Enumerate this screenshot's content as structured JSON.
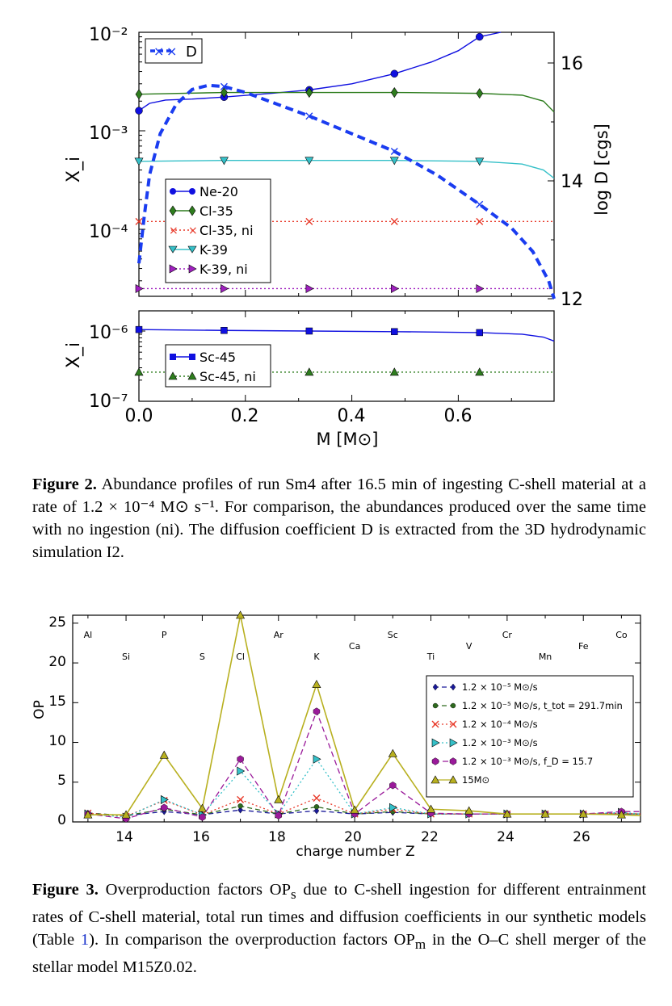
{
  "figure2": {
    "caption_label": "Figure 2.",
    "caption_text": "Abundance profiles of run Sm4 after 16.5 min of ingesting C-shell material at a rate of 1.2 × 10⁻⁴ M⊙ s⁻¹. For comparison, the abundances produced over the same time with no ingestion (ni). The diffusion coefficient D is extracted from the 3D hydrodynamic simulation I2.",
    "top_ylabel": "X_i",
    "right_ylabel": "log D [cgs]",
    "bottom_ylabel": "X_i",
    "xlabel": "M [M⊙]",
    "top_yticks": [
      "10⁻²",
      "10⁻³",
      "10⁻⁴"
    ],
    "right_yticks": [
      "16",
      "14",
      "12"
    ],
    "bottom_yticks": [
      "10⁻⁶",
      "10⁻⁷"
    ],
    "xticks": [
      "0.0",
      "0.2",
      "0.4",
      "0.6"
    ],
    "legend_D": "D",
    "legend_top": [
      "Ne-20",
      "Cl-35",
      "Cl-35, ni",
      "K-39",
      "K-39, ni"
    ],
    "legend_bottom": [
      "Sc-45",
      "Sc-45, ni"
    ],
    "colors": {
      "ne20": "#1010e0",
      "cl35": "#2e7d1e",
      "cl35ni": "#e83a2a",
      "k39": "#35c0c8",
      "k39ni": "#a020c0",
      "sc45": "#1010e0",
      "sc45ni": "#2e7d1e",
      "D": "#1a3cf0"
    }
  },
  "figure3": {
    "caption_label": "Figure 3.",
    "caption_text_1": "Overproduction factors OP",
    "caption_sub_s": "s",
    "caption_text_2": " due to C-shell ingestion for different entrainment rates of C-shell material, total run times and diffusion coefficients in our synthetic models (Table ",
    "caption_ref": "1",
    "caption_text_3": "). In comparison the overproduction factors OP",
    "caption_sub_m": "m",
    "caption_text_4": " in the O–C shell merger of the stellar model M15Z0.02.",
    "ylabel": "OP",
    "xlabel": "charge number Z",
    "yticks": [
      "25",
      "20",
      "15",
      "10",
      "5",
      "0"
    ],
    "xticks": [
      "14",
      "16",
      "18",
      "20",
      "22",
      "24",
      "26"
    ],
    "elements": [
      {
        "name": "Al",
        "z": 13,
        "row": 0
      },
      {
        "name": "Si",
        "z": 14,
        "row": 1
      },
      {
        "name": "P",
        "z": 15,
        "row": 0
      },
      {
        "name": "S",
        "z": 16,
        "row": 1
      },
      {
        "name": "Cl",
        "z": 17,
        "row": 1
      },
      {
        "name": "Ar",
        "z": 18,
        "row": 0
      },
      {
        "name": "K",
        "z": 19,
        "row": 1
      },
      {
        "name": "Ca",
        "z": 20,
        "row": 0.5
      },
      {
        "name": "Sc",
        "z": 21,
        "row": 0
      },
      {
        "name": "Ti",
        "z": 22,
        "row": 1
      },
      {
        "name": "V",
        "z": 23,
        "row": 0.5
      },
      {
        "name": "Cr",
        "z": 24,
        "row": 0
      },
      {
        "name": "Mn",
        "z": 25,
        "row": 1
      },
      {
        "name": "Fe",
        "z": 26,
        "row": 0.5
      },
      {
        "name": "Co",
        "z": 27,
        "row": 0
      }
    ],
    "legend": [
      "1.2 × 10⁻⁵ M⊙/s",
      "1.2 × 10⁻⁵ M⊙/s, t_tot = 291.7min",
      "1.2 × 10⁻⁴ M⊙/s",
      "1.2 × 10⁻³ M⊙/s",
      "1.2 × 10⁻³ M⊙/s, f_D = 15.7",
      "15M⊙"
    ]
  },
  "chart_data": [
    {
      "type": "line",
      "panel": "top",
      "xlabel": "M [M⊙]",
      "ylabel": "X_i",
      "y2label": "log D [cgs]",
      "xlim": [
        0.0,
        0.78
      ],
      "ylim": [
        2e-05,
        0.01
      ],
      "yscale": "log",
      "y2lim": [
        12,
        16.6
      ],
      "x_markers": [
        0.0,
        0.16,
        0.32,
        0.48,
        0.64
      ],
      "series": [
        {
          "name": "Ne-20",
          "x": [
            0.0,
            0.02,
            0.05,
            0.1,
            0.16,
            0.25,
            0.32,
            0.4,
            0.48,
            0.55,
            0.6,
            0.64,
            0.68
          ],
          "y": [
            0.0016,
            0.0019,
            0.00205,
            0.0021,
            0.0022,
            0.0024,
            0.0026,
            0.003,
            0.0038,
            0.005,
            0.0065,
            0.009,
            0.01
          ]
        },
        {
          "name": "Cl-35",
          "x": [
            0.0,
            0.16,
            0.32,
            0.48,
            0.64,
            0.72,
            0.76,
            0.78
          ],
          "y": [
            0.00235,
            0.00245,
            0.00245,
            0.00245,
            0.0024,
            0.0023,
            0.002,
            0.00155
          ]
        },
        {
          "name": "Cl-35, ni",
          "x": [
            0.0,
            0.16,
            0.32,
            0.48,
            0.64,
            0.78
          ],
          "y": [
            0.00012,
            0.00012,
            0.00012,
            0.00012,
            0.00012,
            0.00012
          ]
        },
        {
          "name": "K-39",
          "x": [
            0.0,
            0.16,
            0.32,
            0.48,
            0.64,
            0.72,
            0.76,
            0.78
          ],
          "y": [
            0.00049,
            0.0005,
            0.0005,
            0.0005,
            0.00049,
            0.00046,
            0.0004,
            0.00033
          ]
        },
        {
          "name": "K-39, ni",
          "x": [
            0.0,
            0.16,
            0.32,
            0.48,
            0.64,
            0.78
          ],
          "y": [
            2.5e-05,
            2.5e-05,
            2.5e-05,
            2.5e-05,
            2.5e-05,
            2.5e-05
          ]
        },
        {
          "name": "D",
          "axis": "right",
          "x": [
            0.0,
            0.01,
            0.02,
            0.04,
            0.07,
            0.1,
            0.13,
            0.16,
            0.2,
            0.26,
            0.32,
            0.4,
            0.48,
            0.56,
            0.64,
            0.7,
            0.74,
            0.77,
            0.78
          ],
          "y": [
            12.6,
            13.4,
            14.1,
            14.8,
            15.3,
            15.55,
            15.62,
            15.6,
            15.5,
            15.3,
            15.1,
            14.8,
            14.5,
            14.1,
            13.6,
            13.2,
            12.8,
            12.3,
            12.0
          ]
        }
      ]
    },
    {
      "type": "line",
      "panel": "bottom",
      "xlabel": "M [M⊙]",
      "ylabel": "X_i",
      "xlim": [
        0.0,
        0.78
      ],
      "ylim": [
        1e-07,
        1.6e-06
      ],
      "yscale": "log",
      "series": [
        {
          "name": "Sc-45",
          "x": [
            0.0,
            0.16,
            0.32,
            0.48,
            0.64,
            0.72,
            0.76,
            0.78
          ],
          "y": [
            1.05e-06,
            1.02e-06,
            1e-06,
            9.8e-07,
            9.5e-07,
            9e-07,
            8.2e-07,
            7.2e-07
          ]
        },
        {
          "name": "Sc-45, ni",
          "x": [
            0.0,
            0.16,
            0.32,
            0.48,
            0.64,
            0.78
          ],
          "y": [
            2.6e-07,
            2.6e-07,
            2.6e-07,
            2.6e-07,
            2.6e-07,
            2.6e-07
          ]
        }
      ]
    },
    {
      "type": "line",
      "panel": "figure3",
      "xlabel": "charge number Z",
      "ylabel": "OP",
      "xlim": [
        12.6,
        27.5
      ],
      "ylim": [
        0,
        26
      ],
      "x": [
        13,
        14,
        15,
        16,
        17,
        18,
        19,
        20,
        21,
        22,
        23,
        24,
        25,
        26,
        27,
        27.5
      ],
      "series": [
        {
          "name": "1.2 × 10⁻⁵ M⊙/s",
          "values": [
            1.1,
            0.8,
            1.3,
            0.9,
            1.5,
            1.0,
            1.4,
            1.0,
            1.2,
            1.0,
            1.0,
            1.0,
            1.0,
            1.0,
            1.0,
            1.0
          ]
        },
        {
          "name": "1.2 × 10⁻⁵ M⊙/s, t_tot = 291.7min",
          "values": [
            1.1,
            0.8,
            1.6,
            0.9,
            2.0,
            1.0,
            1.9,
            1.0,
            1.3,
            1.0,
            1.0,
            1.0,
            1.0,
            1.0,
            1.0,
            1.0
          ]
        },
        {
          "name": "1.2 × 10⁻⁴ M⊙/s",
          "values": [
            1.1,
            0.7,
            2.7,
            0.9,
            2.8,
            1.0,
            3.0,
            1.0,
            1.6,
            1.0,
            1.0,
            1.0,
            1.0,
            1.0,
            1.1,
            1.0
          ]
        },
        {
          "name": "1.2 × 10⁻³ M⊙/s",
          "values": [
            1.0,
            0.6,
            2.8,
            0.9,
            6.4,
            1.0,
            7.9,
            1.0,
            1.8,
            1.0,
            1.0,
            1.0,
            1.0,
            1.0,
            1.2,
            1.0
          ]
        },
        {
          "name": "1.2 × 10⁻³ M⊙/s, f_D = 15.7",
          "values": [
            1.0,
            0.4,
            1.8,
            0.6,
            7.9,
            0.8,
            13.9,
            1.0,
            4.6,
            1.1,
            1.0,
            1.0,
            1.0,
            1.0,
            1.3,
            1.3
          ]
        },
        {
          "name": "15M⊙",
          "values": [
            0.9,
            0.9,
            8.4,
            1.7,
            26.0,
            2.8,
            17.3,
            1.5,
            8.6,
            1.6,
            1.4,
            1.0,
            1.0,
            1.0,
            0.9,
            0.8
          ]
        }
      ]
    }
  ]
}
